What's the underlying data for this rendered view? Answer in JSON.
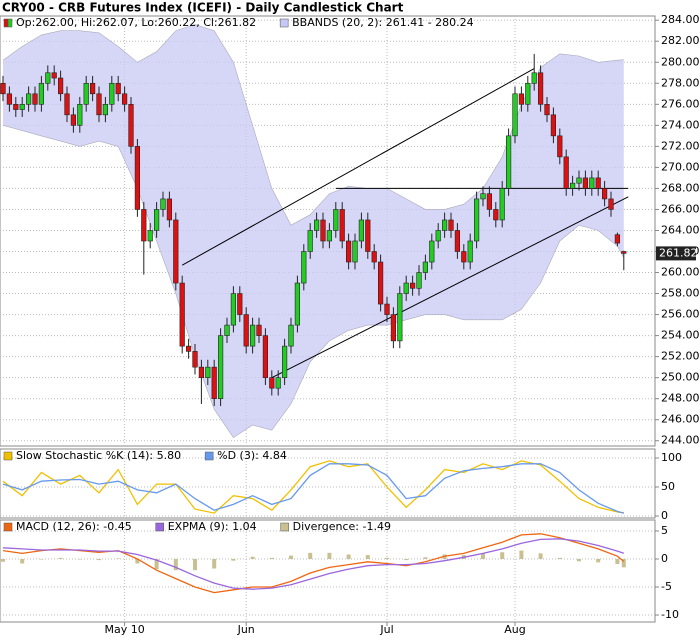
{
  "chart_data": [
    {
      "type": "candlestick",
      "title": "CRY00 - CRB Futures Index (ICEFI) - Daily Candlestick Chart",
      "ohlc_legend": "Op:262.00, Hi:262.07, Lo:260.22, Cl:261.82",
      "up_color": "#22cc22",
      "down_color": "#dd1111",
      "categories": [
        null,
        null,
        null,
        null,
        null,
        null,
        null,
        null,
        null,
        null,
        null,
        null,
        null,
        null,
        null,
        null,
        null,
        null,
        null,
        "May 10",
        null,
        null,
        null,
        null,
        null,
        null,
        null,
        null,
        null,
        null,
        null,
        null,
        null,
        null,
        null,
        null,
        null,
        null,
        "Jun",
        null,
        null,
        null,
        null,
        null,
        null,
        null,
        null,
        null,
        null,
        null,
        null,
        null,
        null,
        null,
        null,
        null,
        null,
        null,
        null,
        null,
        "Jul",
        null,
        null,
        null,
        null,
        null,
        null,
        null,
        null,
        null,
        null,
        null,
        null,
        null,
        null,
        null,
        null,
        null,
        null,
        null,
        "Aug",
        null,
        null,
        null,
        null,
        null,
        null,
        null,
        null,
        null,
        null,
        null,
        null,
        null,
        null,
        null,
        null,
        null
      ],
      "open": [
        278,
        277,
        276,
        275.5,
        276,
        277,
        276,
        278,
        279,
        278.5,
        277,
        275,
        274,
        276,
        278,
        277,
        275,
        276,
        278,
        277,
        276,
        272,
        266,
        263,
        264,
        266,
        267,
        265,
        259,
        253,
        252.5,
        251,
        250,
        251,
        248,
        254,
        255,
        258,
        256,
        253,
        255,
        254,
        250,
        249,
        250,
        253,
        255,
        259,
        262,
        264,
        265,
        263,
        264,
        266,
        263,
        261,
        263,
        265,
        262,
        261,
        257,
        256,
        253.5,
        258,
        259,
        258.5,
        260,
        261,
        263,
        264,
        265,
        264,
        262,
        261,
        263,
        267,
        267.5,
        266,
        265,
        268,
        273,
        277,
        276,
        278,
        279,
        276,
        275,
        273,
        271,
        268,
        268.5,
        269,
        268,
        269,
        268,
        267,
        263.6,
        262
      ],
      "high": [
        278.7,
        277.7,
        276.7,
        276.7,
        277.7,
        277.7,
        278.7,
        279.7,
        279.7,
        279.2,
        277.7,
        275.7,
        276.7,
        278.7,
        278.7,
        277.7,
        276.7,
        278.7,
        278.7,
        277.7,
        276.7,
        272.7,
        266.7,
        264.7,
        266.7,
        267.7,
        267.7,
        265.7,
        259.7,
        253.7,
        253.2,
        251.7,
        251.7,
        251.7,
        254.7,
        255.7,
        258.7,
        258.7,
        256.7,
        255.7,
        255.7,
        254.7,
        250.7,
        250.7,
        253.7,
        255.7,
        259.7,
        262.7,
        264.7,
        265.7,
        265.7,
        264.7,
        266.7,
        266.7,
        263.7,
        263.7,
        265.7,
        265.7,
        262.7,
        261.7,
        257.7,
        256.7,
        258.7,
        259.7,
        259.7,
        260.7,
        261.7,
        263.7,
        264.7,
        265.7,
        265.7,
        264.7,
        262.7,
        263.7,
        267.7,
        268.2,
        268.2,
        266.7,
        268.7,
        273.7,
        277.7,
        277.7,
        278.7,
        280.8,
        279.7,
        276.7,
        275.7,
        273.7,
        271.7,
        269.2,
        269.7,
        269.7,
        269.7,
        269.7,
        268.7,
        267.7,
        263.8,
        262.07
      ],
      "low": [
        276.3,
        275.3,
        274.8,
        274.8,
        275.3,
        275.3,
        275.3,
        277.3,
        277.8,
        276.3,
        274.3,
        273.3,
        273.3,
        275.3,
        276.3,
        274.3,
        274.3,
        275.3,
        276.3,
        275.3,
        271.3,
        265.3,
        259.8,
        262.3,
        263.3,
        265.3,
        264.3,
        258.3,
        252.3,
        251.8,
        250.3,
        247.5,
        249.3,
        247.3,
        247.3,
        253.3,
        254.3,
        255.3,
        252.3,
        252.3,
        253.3,
        249.3,
        248.3,
        248.3,
        249.3,
        252.3,
        254.3,
        258.3,
        261.3,
        263.3,
        262.3,
        262.3,
        263.3,
        262.3,
        260.3,
        260.3,
        262.3,
        261.3,
        260.3,
        256.3,
        255.3,
        252.8,
        252.8,
        257.3,
        257.8,
        257.8,
        259.3,
        260.3,
        262.3,
        263.3,
        263.3,
        261.3,
        260.3,
        260.3,
        262.3,
        266.3,
        265.3,
        264.3,
        264.3,
        267.3,
        272.3,
        275.3,
        275.3,
        277.3,
        275.3,
        274.3,
        272.3,
        270.3,
        267.3,
        267.3,
        267.8,
        267.3,
        267.3,
        267.3,
        266.3,
        265.3,
        262.5,
        260.22
      ],
      "close": [
        277,
        276,
        275.5,
        276,
        277,
        276,
        278,
        279,
        278.5,
        277,
        275,
        274,
        276,
        278,
        277,
        275,
        276,
        278,
        277,
        276,
        272,
        266,
        263,
        264,
        266,
        267,
        265,
        259,
        253,
        252.5,
        251,
        250,
        251,
        248,
        254,
        255,
        258,
        256,
        253,
        255,
        254,
        250,
        249,
        250,
        253,
        255,
        259,
        262,
        264,
        265,
        263,
        264,
        266,
        263,
        261,
        263,
        265,
        262,
        261,
        257,
        256,
        253.5,
        258,
        259,
        258.5,
        260,
        261,
        263,
        264,
        265,
        264,
        262,
        261,
        263,
        267,
        267.5,
        266,
        265,
        268,
        273,
        277,
        276,
        278,
        279,
        276,
        275,
        273,
        271,
        268,
        268.5,
        269,
        268,
        269,
        268,
        267,
        266,
        262.8,
        261.82
      ],
      "x": [
        0,
        3,
        6,
        9,
        12,
        15,
        18,
        21,
        24,
        27,
        30,
        33,
        36,
        39,
        42,
        45,
        48,
        51,
        54,
        57,
        60,
        63,
        66,
        69,
        72,
        75,
        78,
        81,
        84,
        87,
        90,
        93,
        96,
        97
      ],
      "bbands": {
        "name": "BBANDS (20, 2): 261.41 - 280.24",
        "color": "#c8c8f4",
        "upper": [
          280.2,
          281.5,
          282.6,
          283,
          283,
          282.8,
          281.5,
          280,
          281,
          283,
          283.6,
          283,
          280,
          274,
          268,
          264.5,
          265.5,
          267.5,
          268.2,
          268,
          268,
          267,
          266,
          266,
          266.5,
          268,
          271,
          276,
          279.5,
          280.8,
          280.6,
          280,
          280.2,
          280.24
        ],
        "lower": [
          274,
          273.5,
          273,
          272.5,
          272,
          272.5,
          272,
          268,
          263,
          258,
          252,
          247,
          244.3,
          245.5,
          245,
          247.5,
          251.5,
          253.5,
          254.5,
          255,
          255,
          255.5,
          256,
          256,
          255.5,
          255.5,
          255.5,
          256.5,
          259,
          263,
          264.5,
          264,
          262.5,
          261.41
        ]
      },
      "trendlines": [
        {
          "x": [
            28,
            83
          ],
          "y": [
            260.7,
            279.4
          ]
        },
        {
          "x": [
            42,
            97.7
          ],
          "y": [
            250,
            267.2
          ]
        },
        {
          "x": [
            52,
            97.7
          ],
          "y": [
            268,
            268
          ]
        }
      ],
      "ylim": [
        243.5,
        284.4
      ],
      "yticks": [
        {
          "value": 244,
          "label": "244.00"
        },
        {
          "value": 246,
          "label": "246.00"
        },
        {
          "value": 248,
          "label": "248.00"
        },
        {
          "value": 250,
          "label": "250.00"
        },
        {
          "value": 252,
          "label": "252.00"
        },
        {
          "value": 254,
          "label": "254.00"
        },
        {
          "value": 256,
          "label": "256.00"
        },
        {
          "value": 258,
          "label": "258.00"
        },
        {
          "value": 260,
          "label": "260.00"
        },
        {
          "value": 262,
          "label": "262.00"
        },
        {
          "value": 264,
          "label": "264.00"
        },
        {
          "value": 266,
          "label": "266.00"
        },
        {
          "value": 268,
          "label": "268.00"
        },
        {
          "value": 270,
          "label": "270.00"
        },
        {
          "value": 272,
          "label": "272.00"
        },
        {
          "value": 274,
          "label": "274.00"
        },
        {
          "value": 276,
          "label": "276.00"
        },
        {
          "value": 278,
          "label": "278.00"
        },
        {
          "value": 280,
          "label": "280.00"
        },
        {
          "value": 282,
          "label": "282.00"
        },
        {
          "value": 284,
          "label": "284.00"
        }
      ],
      "grid": true
    },
    {
      "type": "line",
      "x": [
        0,
        3,
        6,
        9,
        12,
        15,
        18,
        21,
        24,
        27,
        30,
        33,
        36,
        39,
        42,
        45,
        48,
        51,
        54,
        57,
        60,
        63,
        66,
        69,
        72,
        75,
        78,
        81,
        84,
        87,
        90,
        93,
        96,
        97
      ],
      "series": [
        {
          "name": "Slow Stochastic %K (14): 5.80",
          "color": "#f0c000",
          "values": [
            60,
            35,
            75,
            55,
            70,
            40,
            80,
            20,
            55,
            55,
            12,
            5,
            35,
            30,
            10,
            45,
            85,
            95,
            85,
            90,
            50,
            15,
            45,
            80,
            75,
            90,
            80,
            95,
            88,
            60,
            30,
            15,
            7,
            5.8
          ]
        },
        {
          "name": "%D (3): 4.84",
          "color": "#6699ee",
          "values": [
            55,
            45,
            60,
            62,
            63,
            55,
            60,
            45,
            40,
            55,
            30,
            10,
            20,
            35,
            20,
            30,
            70,
            90,
            90,
            88,
            70,
            30,
            35,
            65,
            78,
            82,
            85,
            90,
            90,
            75,
            45,
            22,
            8,
            4.84
          ]
        }
      ],
      "ylim": [
        -3.4,
        115.5
      ],
      "yticks": [
        0,
        50,
        100
      ],
      "grid": true
    },
    {
      "type": "line",
      "x": [
        0,
        3,
        6,
        9,
        12,
        15,
        18,
        21,
        24,
        27,
        30,
        33,
        36,
        39,
        42,
        45,
        48,
        51,
        54,
        57,
        60,
        63,
        66,
        69,
        72,
        75,
        78,
        81,
        84,
        87,
        90,
        93,
        96,
        97
      ],
      "series": [
        {
          "name": "MACD (12, 26): -0.45",
          "color": "#ee6611",
          "values": [
            1.5,
            1,
            1.5,
            1.8,
            1.5,
            1.2,
            1.5,
            0,
            -2,
            -3.5,
            -5,
            -6,
            -5.5,
            -5,
            -5,
            -4,
            -2.5,
            -1.5,
            -1,
            -0.5,
            -0.8,
            -1.2,
            -0.5,
            0.5,
            1,
            2,
            3,
            4.3,
            4.5,
            3.8,
            2.8,
            1.8,
            0.5,
            -0.45
          ]
        },
        {
          "name": "EXPMA (9): 1.04",
          "color": "#9966dd",
          "values": [
            2,
            1.8,
            1.6,
            1.6,
            1.6,
            1.4,
            1.4,
            0.8,
            -0.2,
            -1.5,
            -3,
            -4.3,
            -5.2,
            -5.4,
            -5.2,
            -4.6,
            -3.6,
            -2.6,
            -1.8,
            -1.2,
            -1,
            -1,
            -0.8,
            -0.3,
            0.3,
            1,
            1.8,
            2.8,
            3.5,
            3.6,
            3.2,
            2.4,
            1.4,
            1.04
          ]
        },
        {
          "name": "Divergence: -1.49",
          "color": "#c8c090",
          "type": "bar",
          "values": [
            -0.5,
            -0.8,
            -0.1,
            0.2,
            -0.1,
            -0.2,
            0.1,
            -0.8,
            -1.8,
            -2,
            -2,
            -1.7,
            -0.3,
            0.4,
            0.2,
            0.6,
            1.1,
            1.1,
            0.8,
            0.7,
            0.2,
            -0.2,
            0.3,
            0.8,
            0.7,
            1,
            1.2,
            1.5,
            1,
            0.2,
            -0.4,
            -0.6,
            -0.9,
            -1.49
          ]
        }
      ],
      "ylim": [
        -11.25,
        6.96
      ],
      "yticks": [
        5,
        0,
        -5,
        -10
      ],
      "grid": true
    }
  ]
}
